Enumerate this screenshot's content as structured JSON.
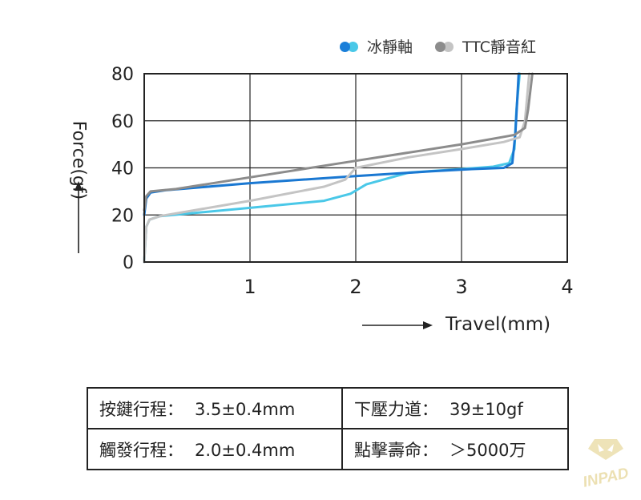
{
  "legend": [
    {
      "name": "冰靜軸",
      "color_dark": "#1a7fd9",
      "color_light": "#4ac8e8"
    },
    {
      "name": "TTC靜音紅",
      "color_dark": "#8c8c8c",
      "color_light": "#c4c4c4"
    }
  ],
  "chart_data": {
    "type": "line",
    "xlabel": "Travel(mm)",
    "ylabel": "Force(gf)",
    "xlim": [
      0,
      4
    ],
    "ylim": [
      0,
      80
    ],
    "xticks": [
      "1",
      "2",
      "3",
      "4"
    ],
    "yticks": [
      "0",
      "20",
      "40",
      "60",
      "80"
    ],
    "grid": true,
    "legend_position": "top-right",
    "series": [
      {
        "name": "冰靜軸",
        "stroke": "press",
        "color": "#4ac8e8",
        "x": [
          0,
          0.02,
          0.05,
          0.15,
          1.0,
          1.7,
          1.95,
          2.1,
          2.5,
          3.0,
          3.3,
          3.45,
          3.5,
          3.52,
          3.55
        ],
        "y": [
          0,
          15,
          18,
          19.5,
          23,
          26,
          29,
          33,
          38,
          39.5,
          40.5,
          42,
          48,
          65,
          80
        ]
      },
      {
        "name": "冰靜軸",
        "stroke": "return",
        "color": "#1a78d2",
        "x": [
          0,
          0.02,
          0.06,
          0.2,
          1.0,
          2.0,
          2.7,
          3.1,
          3.4,
          3.48,
          3.51,
          3.54
        ],
        "y": [
          20,
          27,
          29.5,
          30.5,
          33.5,
          36.5,
          38.5,
          39.5,
          40,
          42,
          55,
          80
        ]
      },
      {
        "name": "TTC靜音紅",
        "stroke": "press",
        "color": "#c4c4c4",
        "x": [
          0,
          0.02,
          0.05,
          0.15,
          1.0,
          1.7,
          1.9,
          2.0,
          2.5,
          3.0,
          3.4,
          3.55,
          3.6,
          3.64
        ],
        "y": [
          0,
          15,
          18,
          19.5,
          26,
          32,
          35,
          40,
          44.5,
          48,
          51,
          53,
          60,
          80
        ]
      },
      {
        "name": "TTC靜音紅",
        "stroke": "return",
        "color": "#8c8c8c",
        "x": [
          0,
          0.02,
          0.06,
          0.3,
          1.0,
          2.0,
          3.0,
          3.5,
          3.6,
          3.63,
          3.67
        ],
        "y": [
          22,
          28,
          30,
          31,
          36,
          43,
          50,
          54,
          57,
          65,
          80
        ]
      }
    ]
  },
  "specs": {
    "travel_label": "按鍵行程：",
    "travel_value": "3.5±0.4mm",
    "force_label": "下壓力道：",
    "force_value": "39±10gf",
    "actuation_label": "觸發行程：",
    "actuation_value": "2.0±0.4mm",
    "life_label": "點擊壽命：",
    "life_value": "＞5000万"
  },
  "watermark": {
    "text": "INPAD",
    "color": "#e8d9a0"
  }
}
